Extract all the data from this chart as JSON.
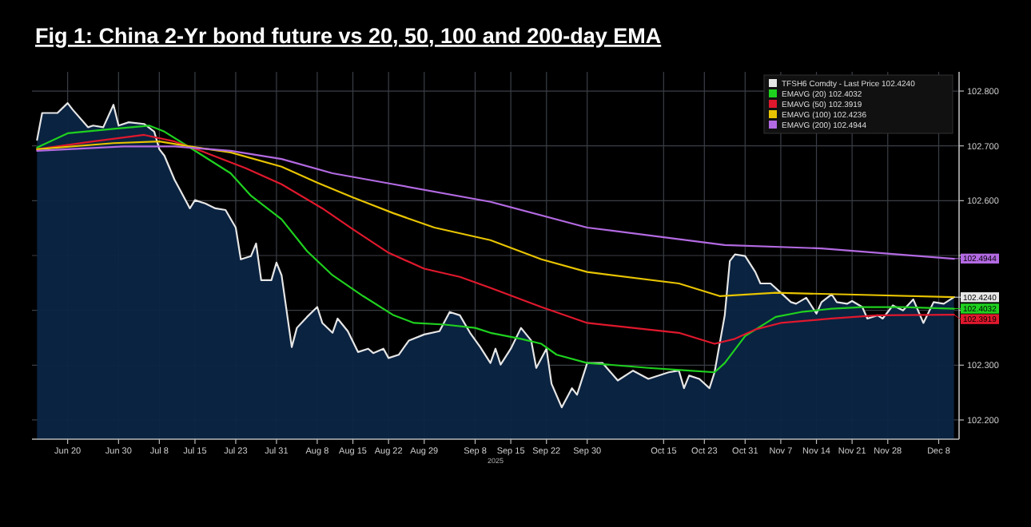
{
  "chart_data": {
    "type": "line",
    "title": "Fig 1:  China 2-Yr bond future  vs 20, 50, 100 and 200-day EMA",
    "xlabel": "2025",
    "xlim": [
      "2025-06-13",
      "2025-12-12"
    ],
    "xticks": [
      {
        "value": "2025-06-20",
        "label": "Jun 20"
      },
      {
        "value": "2025-06-30",
        "label": "Jun 30"
      },
      {
        "value": "2025-07-08",
        "label": "Jul 8"
      },
      {
        "value": "2025-07-15",
        "label": "Jul 15"
      },
      {
        "value": "2025-07-23",
        "label": "Jul 23"
      },
      {
        "value": "2025-07-31",
        "label": "Jul 31"
      },
      {
        "value": "2025-08-08",
        "label": "Aug 8"
      },
      {
        "value": "2025-08-15",
        "label": "Aug 15"
      },
      {
        "value": "2025-08-22",
        "label": "Aug 22"
      },
      {
        "value": "2025-08-29",
        "label": "Aug 29"
      },
      {
        "value": "2025-09-08",
        "label": "Sep 8"
      },
      {
        "value": "2025-09-15",
        "label": "Sep 15"
      },
      {
        "value": "2025-09-22",
        "label": "Sep 22"
      },
      {
        "value": "2025-09-30",
        "label": "Sep 30"
      },
      {
        "value": "2025-10-15",
        "label": "Oct 15"
      },
      {
        "value": "2025-10-23",
        "label": "Oct 23"
      },
      {
        "value": "2025-10-31",
        "label": "Oct 31"
      },
      {
        "value": "2025-11-07",
        "label": "Nov 7"
      },
      {
        "value": "2025-11-14",
        "label": "Nov 14"
      },
      {
        "value": "2025-11-21",
        "label": "Nov 21"
      },
      {
        "value": "2025-11-28",
        "label": "Nov 28"
      },
      {
        "value": "2025-12-08",
        "label": "Dec 8"
      }
    ],
    "ylim": [
      102.165,
      102.835
    ],
    "yticks": [
      {
        "value": 102.2,
        "label": "102.200"
      },
      {
        "value": 102.3,
        "label": "102.300"
      },
      {
        "value": 102.4,
        "label": null
      },
      {
        "value": 102.5,
        "label": null
      },
      {
        "value": 102.6,
        "label": "102.600"
      },
      {
        "value": 102.7,
        "label": "102.700"
      },
      {
        "value": 102.8,
        "label": "102.800"
      }
    ],
    "grid": true,
    "legend": "top right",
    "series": [
      {
        "name": "TFSH6 Comdty - Last Price   102.4240",
        "type": "area",
        "color": "#e6e6e6",
        "x": [
          "2025-06-14",
          "2025-06-15",
          "2025-06-18",
          "2025-06-20",
          "2025-06-21",
          "2025-06-24",
          "2025-06-25",
          "2025-06-27",
          "2025-06-29",
          "2025-06-30",
          "2025-07-02",
          "2025-07-05",
          "2025-07-07",
          "2025-07-08",
          "2025-07-09",
          "2025-07-11",
          "2025-07-12",
          "2025-07-14",
          "2025-07-15",
          "2025-07-17",
          "2025-07-19",
          "2025-07-21",
          "2025-07-23",
          "2025-07-24",
          "2025-07-26",
          "2025-07-27",
          "2025-07-28",
          "2025-07-30",
          "2025-07-31",
          "2025-08-01",
          "2025-08-03",
          "2025-08-04",
          "2025-08-06",
          "2025-08-08",
          "2025-08-09",
          "2025-08-11",
          "2025-08-12",
          "2025-08-14",
          "2025-08-16",
          "2025-08-18",
          "2025-08-19",
          "2025-08-21",
          "2025-08-22",
          "2025-08-24",
          "2025-08-26",
          "2025-08-29",
          "2025-09-01",
          "2025-09-03",
          "2025-09-05",
          "2025-09-07",
          "2025-09-09",
          "2025-09-11",
          "2025-09-12",
          "2025-09-13",
          "2025-09-15",
          "2025-09-17",
          "2025-09-19",
          "2025-09-20",
          "2025-09-22",
          "2025-09-23",
          "2025-09-25",
          "2025-09-27",
          "2025-09-28",
          "2025-09-30",
          "2025-10-03",
          "2025-10-06",
          "2025-10-09",
          "2025-10-12",
          "2025-10-16",
          "2025-10-18",
          "2025-10-19",
          "2025-10-20",
          "2025-10-22",
          "2025-10-24",
          "2025-10-25",
          "2025-10-27",
          "2025-10-28",
          "2025-10-29",
          "2025-10-31",
          "2025-11-02",
          "2025-11-03",
          "2025-11-05",
          "2025-11-07",
          "2025-11-09",
          "2025-11-10",
          "2025-11-12",
          "2025-11-14",
          "2025-11-15",
          "2025-11-17",
          "2025-11-18",
          "2025-11-20",
          "2025-11-21",
          "2025-11-23",
          "2025-11-24",
          "2025-11-26",
          "2025-11-27",
          "2025-11-29",
          "2025-12-01",
          "2025-12-03",
          "2025-12-05",
          "2025-12-07",
          "2025-12-09",
          "2025-12-11"
        ],
        "values": [
          102.711,
          102.76,
          102.76,
          102.778,
          102.766,
          102.734,
          102.737,
          102.734,
          102.775,
          102.737,
          102.743,
          102.74,
          102.726,
          102.694,
          102.682,
          102.638,
          102.621,
          102.586,
          102.601,
          102.595,
          102.586,
          102.583,
          102.551,
          102.493,
          102.499,
          102.522,
          102.455,
          102.455,
          102.487,
          102.464,
          102.333,
          102.368,
          102.388,
          102.406,
          102.377,
          102.359,
          102.385,
          102.362,
          102.324,
          102.33,
          102.322,
          102.33,
          102.313,
          102.319,
          102.345,
          102.356,
          102.362,
          102.397,
          102.391,
          102.359,
          102.333,
          102.304,
          102.33,
          102.301,
          102.33,
          102.368,
          102.345,
          102.295,
          102.33,
          102.266,
          102.223,
          102.258,
          102.246,
          102.304,
          102.304,
          102.272,
          102.29,
          102.275,
          102.287,
          102.29,
          102.258,
          102.281,
          102.275,
          102.258,
          102.287,
          102.391,
          102.49,
          102.502,
          102.499,
          102.47,
          102.449,
          102.449,
          102.432,
          102.415,
          102.412,
          102.423,
          102.394,
          102.415,
          102.429,
          102.415,
          102.412,
          102.417,
          102.406,
          102.385,
          102.391,
          102.385,
          102.409,
          102.4,
          102.42,
          102.377,
          102.415,
          102.412,
          102.424
        ]
      },
      {
        "name": "EMAVG (20)   102.4032",
        "color": "#1fd11f",
        "x": [
          "2025-06-14",
          "2025-06-20",
          "2025-06-29",
          "2025-07-06",
          "2025-07-09",
          "2025-07-14",
          "2025-07-22",
          "2025-07-26",
          "2025-08-01",
          "2025-08-06",
          "2025-08-11",
          "2025-08-17",
          "2025-08-23",
          "2025-08-27",
          "2025-09-02",
          "2025-09-08",
          "2025-09-11",
          "2025-09-17",
          "2025-09-21",
          "2025-09-24",
          "2025-09-30",
          "2025-10-12",
          "2025-10-20",
          "2025-10-25",
          "2025-10-27",
          "2025-10-31",
          "2025-11-06",
          "2025-11-11",
          "2025-11-17",
          "2025-11-23",
          "2025-12-01",
          "2025-12-11"
        ],
        "values": [
          102.697,
          102.723,
          102.731,
          102.737,
          102.726,
          102.697,
          102.65,
          102.609,
          102.566,
          102.508,
          102.464,
          102.426,
          102.391,
          102.377,
          102.374,
          102.368,
          102.359,
          102.348,
          102.339,
          102.319,
          102.304,
          102.295,
          102.29,
          102.287,
          102.304,
          102.353,
          102.388,
          102.397,
          102.403,
          102.406,
          102.406,
          102.403
        ]
      },
      {
        "name": "EMAVG (50)   102.3919",
        "color": "#e0182d",
        "x": [
          "2025-06-14",
          "2025-06-25",
          "2025-07-05",
          "2025-07-11",
          "2025-07-17",
          "2025-07-25",
          "2025-08-01",
          "2025-08-09",
          "2025-08-15",
          "2025-08-22",
          "2025-08-29",
          "2025-09-05",
          "2025-09-11",
          "2025-09-21",
          "2025-09-30",
          "2025-10-18",
          "2025-10-25",
          "2025-10-29",
          "2025-11-02",
          "2025-11-07",
          "2025-11-17",
          "2025-11-26",
          "2025-12-11"
        ],
        "values": [
          102.694,
          102.708,
          102.72,
          102.708,
          102.688,
          102.659,
          102.63,
          102.586,
          102.548,
          102.505,
          102.476,
          102.461,
          102.441,
          102.406,
          102.377,
          102.359,
          102.339,
          102.348,
          102.365,
          102.377,
          102.385,
          102.391,
          102.392
        ]
      },
      {
        "name": "EMAVG (100)   102.4236",
        "color": "#e8c400",
        "x": [
          "2025-06-14",
          "2025-06-29",
          "2025-07-08",
          "2025-07-14",
          "2025-07-22",
          "2025-08-01",
          "2025-08-08",
          "2025-08-15",
          "2025-08-23",
          "2025-08-31",
          "2025-09-11",
          "2025-09-21",
          "2025-09-30",
          "2025-10-18",
          "2025-10-26",
          "2025-11-06",
          "2025-11-20",
          "2025-12-11"
        ],
        "values": [
          102.694,
          102.705,
          102.708,
          102.699,
          102.688,
          102.662,
          102.633,
          102.606,
          102.577,
          102.551,
          102.528,
          102.493,
          102.47,
          102.449,
          102.426,
          102.432,
          102.429,
          102.424
        ]
      },
      {
        "name": "EMAVG (200)   102.4944",
        "color": "#b36ae2",
        "x": [
          "2025-06-14",
          "2025-07-01",
          "2025-07-11",
          "2025-07-22",
          "2025-08-01",
          "2025-08-11",
          "2025-08-23",
          "2025-09-11",
          "2025-09-30",
          "2025-10-27",
          "2025-11-15",
          "2025-12-11"
        ],
        "values": [
          102.691,
          102.699,
          102.699,
          102.691,
          102.676,
          102.65,
          102.63,
          102.598,
          102.551,
          102.519,
          102.513,
          102.494
        ]
      }
    ],
    "annotations": [
      {
        "text": "102.4944",
        "x": "2025-12-11",
        "y": 102.4944
      },
      {
        "text": "102.4240",
        "x": "2025-12-11",
        "y": 102.424
      },
      {
        "text": "102.4032",
        "x": "2025-12-11",
        "y": 102.4032
      },
      {
        "text": "102.3919",
        "x": "2025-12-11",
        "y": 102.3919
      }
    ]
  }
}
